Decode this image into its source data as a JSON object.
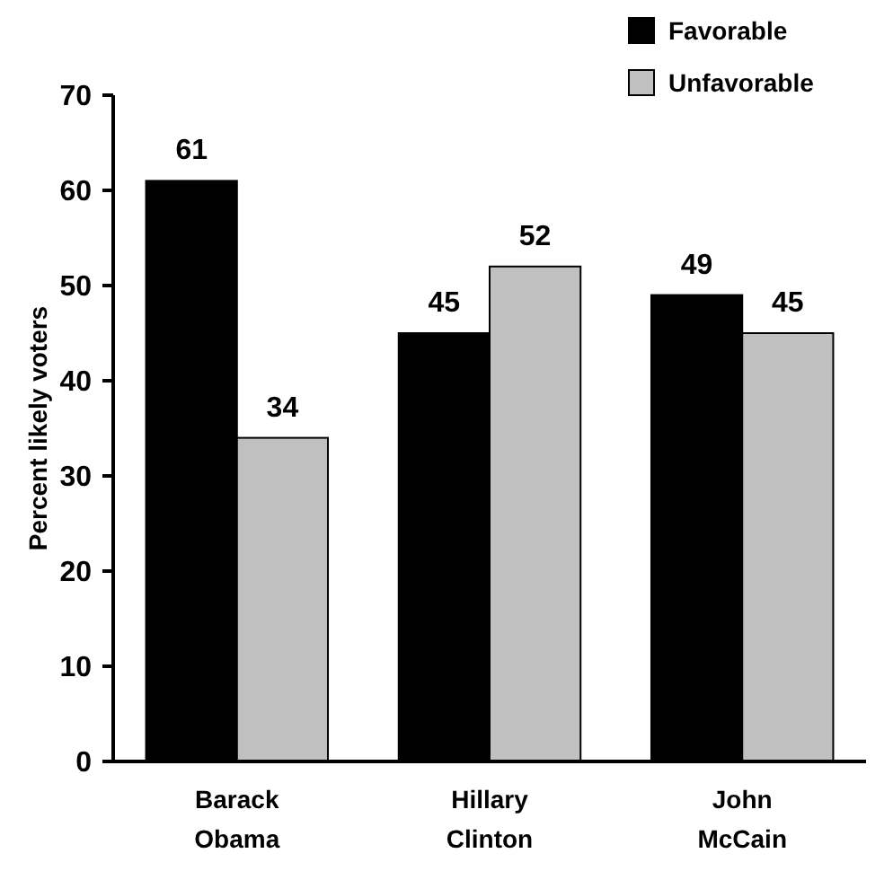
{
  "chart_data": {
    "type": "bar",
    "ylabel": "Percent likely voters",
    "categories": [
      "Barack Obama",
      "Hillary Clinton",
      "John McCain"
    ],
    "series": [
      {
        "name": "Favorable",
        "color": "#000000",
        "values": [
          61,
          45,
          49
        ]
      },
      {
        "name": "Unfavorable",
        "color": "#c0c0c0",
        "values": [
          34,
          52,
          45
        ]
      }
    ],
    "ylim": [
      0,
      70
    ],
    "yticks": [
      0,
      10,
      20,
      30,
      40,
      50,
      60,
      70
    ],
    "data_labels": true,
    "legend": "top right",
    "grid": false
  }
}
